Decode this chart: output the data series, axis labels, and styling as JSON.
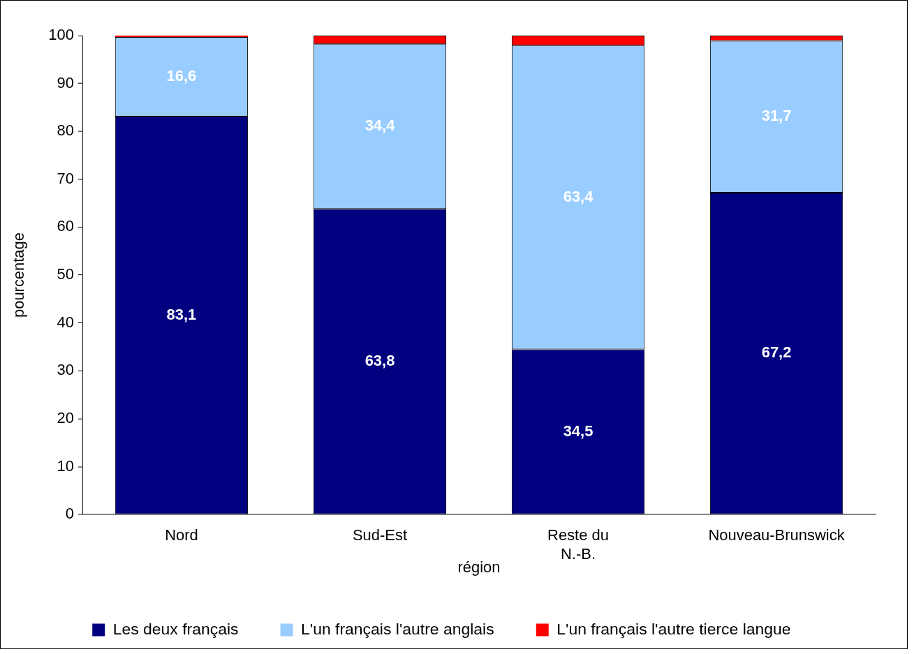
{
  "chart_data": {
    "type": "bar",
    "stacked": true,
    "xlabel": "région",
    "ylabel": "pourcentage",
    "categories": [
      "Nord",
      "Sud-Est",
      "Reste du N.-B.",
      "Nouveau-Brunswick"
    ],
    "series": [
      {
        "name": "Les deux français",
        "color": "#000080",
        "values": [
          83.1,
          63.8,
          34.5,
          67.2
        ],
        "value_labels": [
          "83,1",
          "63,8",
          "34,5",
          "67,2"
        ]
      },
      {
        "name": "L'un français l'autre anglais",
        "color": "#99ccff",
        "values": [
          16.6,
          34.4,
          63.4,
          31.7
        ],
        "value_labels": [
          "16,6",
          "34,4",
          "63,4",
          "31,7"
        ]
      },
      {
        "name": "L'un français l'autre tierce langue",
        "color": "#ff0000",
        "values": [
          0.3,
          1.8,
          2.1,
          1.1
        ]
      }
    ],
    "ylim": [
      0,
      100
    ],
    "yticks": [
      0,
      10,
      20,
      30,
      40,
      50,
      60,
      70,
      80,
      90,
      100
    ],
    "grid": false,
    "legend": "bottom"
  }
}
